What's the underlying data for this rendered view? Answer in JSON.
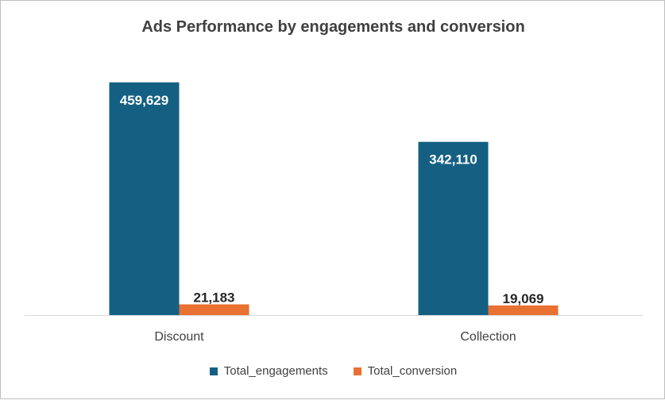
{
  "chart_data": {
    "type": "bar",
    "title": "Ads Performance by engagements and conversion",
    "categories": [
      "Discount",
      "Collection"
    ],
    "series": [
      {
        "name": "Total_engagements",
        "values": [
          459629,
          342110
        ],
        "labels": [
          "459,629",
          "342,110"
        ],
        "color": "#156082"
      },
      {
        "name": "Total_conversion",
        "values": [
          21183,
          19069
        ],
        "labels": [
          "21,183",
          "19,069"
        ],
        "color": "#E97132"
      }
    ],
    "ylim": [
      0,
      500000
    ],
    "grid": false,
    "legend": "bottom"
  }
}
